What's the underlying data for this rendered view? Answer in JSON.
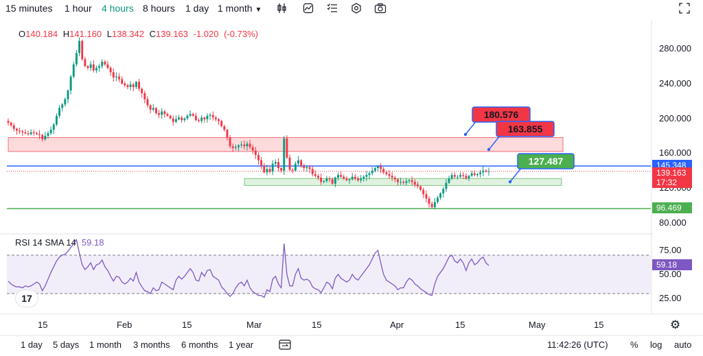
{
  "toolbar": {
    "timeframes": [
      {
        "label": "15 minutes",
        "active": false
      },
      {
        "label": "1 hour",
        "active": false
      },
      {
        "label": "4 hours",
        "active": true
      },
      {
        "label": "8 hours",
        "active": false
      },
      {
        "label": "1 day",
        "active": false
      },
      {
        "label": "1 month",
        "active": false
      }
    ],
    "icons": [
      "candlestick-icon",
      "indicator-icon",
      "compare-icon",
      "settings-icon",
      "snapshot-icon",
      "fullscreen-icon"
    ]
  },
  "ohlc": {
    "o_label": "O",
    "o": "140.184",
    "h_label": "H",
    "h": "141.160",
    "l_label": "L",
    "l": "138.342",
    "c_label": "C",
    "c": "139.163",
    "change": "-1.020",
    "change_pct": "(-0.73%)"
  },
  "rsi": {
    "label": "RSI 14 SMA 14",
    "value": "59.18",
    "levels": [
      "75.00",
      "50.00",
      "25.00"
    ],
    "upper": 70,
    "lower": 30
  },
  "colors": {
    "up": "#089981",
    "down": "#f23645",
    "rsi_line": "#7e57c2",
    "blue_line": "#2962ff",
    "green_line": "#4caf50",
    "red_zone": "#f23645",
    "green_zone": "#4caf50"
  },
  "chart_data": {
    "type": "candlestick",
    "ylim": [
      75,
      295
    ],
    "y_ticks": [
      "280.000",
      "240.000",
      "200.000",
      "160.000",
      "120.000",
      "80.000"
    ],
    "y_tick_values": [
      280,
      240,
      200,
      160,
      120,
      80
    ],
    "x_ticks": [
      "15",
      "Feb",
      "15",
      "Mar",
      "15",
      "Apr",
      "15",
      "May",
      "15"
    ],
    "current_price": "139.163",
    "countdown": "17:32",
    "horizontal_lines": [
      {
        "value": 145.348,
        "label": "145.348",
        "color": "#2962ff"
      },
      {
        "value": 96.469,
        "label": "96.469",
        "color": "#4caf50"
      }
    ],
    "zones": [
      {
        "low": 162,
        "high": 178,
        "color": "#f23645"
      },
      {
        "low": 123,
        "high": 131,
        "color": "#4caf50"
      }
    ],
    "callouts": [
      {
        "text": "180.576",
        "value": 180.576,
        "color": "#f23645"
      },
      {
        "text": "163.855",
        "value": 163.855,
        "color": "#f23645"
      },
      {
        "text": "127.487",
        "value": 127.487,
        "color": "#4caf50"
      }
    ],
    "closes": [
      195,
      192,
      188,
      186,
      185,
      184,
      183,
      182,
      184,
      183,
      182,
      181,
      176,
      180,
      183,
      187,
      193,
      203,
      212,
      216,
      222,
      232,
      248,
      262,
      275,
      289,
      268,
      260,
      258,
      262,
      255,
      258,
      260,
      265,
      262,
      258,
      253,
      247,
      248,
      245,
      240,
      238,
      236,
      239,
      236,
      242,
      234,
      229,
      222,
      215,
      210,
      212,
      206,
      204,
      208,
      205,
      203,
      200,
      196,
      199,
      201,
      198,
      200,
      203,
      205,
      203,
      198,
      197,
      201,
      199,
      203,
      204,
      201,
      199,
      197,
      191,
      187,
      178,
      168,
      166,
      167,
      169,
      170,
      168,
      171,
      167,
      163,
      158,
      152,
      146,
      138,
      142,
      139,
      148,
      150,
      143,
      140,
      177,
      155,
      141,
      140,
      148,
      152,
      146,
      143,
      144,
      142,
      136,
      134,
      132,
      127,
      128,
      131,
      130,
      125,
      132,
      135,
      133,
      131,
      129,
      130,
      133,
      131,
      129,
      131,
      133,
      135,
      137,
      140,
      143,
      145,
      142,
      138,
      136,
      134,
      132,
      130,
      127,
      127,
      126,
      128,
      129,
      127,
      124,
      122,
      118,
      113,
      108,
      102,
      98,
      104,
      109,
      114,
      119,
      126,
      131,
      135,
      133,
      133,
      135,
      134,
      131,
      134,
      137,
      135,
      136,
      138,
      140,
      139,
      139.163
    ],
    "rsi_values": [
      43,
      40,
      38,
      37,
      37,
      36,
      38,
      37,
      38,
      40,
      42,
      40,
      33,
      38,
      45,
      52,
      58,
      64,
      68,
      70,
      71,
      74,
      78,
      82,
      86,
      72,
      60,
      55,
      58,
      62,
      55,
      60,
      61,
      65,
      58,
      54,
      48,
      43,
      48,
      47,
      42,
      40,
      42,
      46,
      43,
      52,
      42,
      37,
      33,
      32,
      30,
      36,
      33,
      34,
      42,
      40,
      38,
      36,
      34,
      44,
      48,
      45,
      48,
      52,
      56,
      52,
      44,
      43,
      52,
      48,
      54,
      55,
      48,
      46,
      44,
      37,
      34,
      30,
      27,
      30,
      36,
      40,
      42,
      38,
      44,
      36,
      32,
      30,
      28,
      28,
      26,
      34,
      32,
      45,
      48,
      40,
      36,
      82,
      50,
      38,
      38,
      50,
      56,
      46,
      44,
      45,
      43,
      37,
      35,
      34,
      31,
      36,
      42,
      40,
      35,
      46,
      50,
      46,
      44,
      42,
      44,
      50,
      46,
      44,
      48,
      52,
      56,
      60,
      66,
      72,
      75,
      62,
      50,
      44,
      42,
      40,
      38,
      34,
      36,
      36,
      42,
      46,
      44,
      40,
      38,
      35,
      33,
      31,
      29,
      28,
      40,
      48,
      52,
      56,
      62,
      68,
      70,
      64,
      62,
      66,
      62,
      54,
      62,
      66,
      60,
      62,
      66,
      68,
      62,
      59.18
    ]
  },
  "bottombar": {
    "ranges": [
      "1 day",
      "5 days",
      "1 month",
      "3 months",
      "6 months",
      "1 year"
    ],
    "time": "11:42:26 (UTC)",
    "pct": "%",
    "log": "log",
    "auto": "auto"
  }
}
